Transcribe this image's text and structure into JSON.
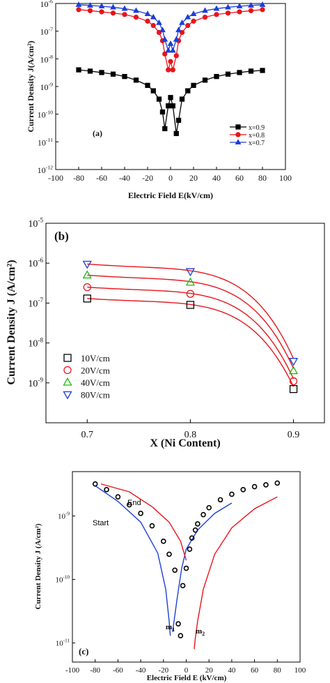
{
  "chart_data": [
    {
      "panel": "(a)",
      "type": "line",
      "xlabel": "Electric Field E(kV/cm)",
      "ylabel": "Current Density J(A/cm²)",
      "xlim": [
        -100,
        100
      ],
      "ylim": [
        1e-12,
        1e-06
      ],
      "yscale": "log",
      "xticks": [
        "-100",
        "-80",
        "-60",
        "-40",
        "-20",
        "0",
        "20",
        "40",
        "60",
        "80",
        "100"
      ],
      "yticks": [
        {
          "b": "10",
          "e": "-12"
        },
        {
          "b": "10",
          "e": "-11"
        },
        {
          "b": "10",
          "e": "-10"
        },
        {
          "b": "10",
          "e": "-9"
        },
        {
          "b": "10",
          "e": "-8"
        },
        {
          "b": "10",
          "e": "-7"
        },
        {
          "b": "10",
          "e": "-6"
        }
      ],
      "legend_position": "bottom-right",
      "series": [
        {
          "name": "x=0.9",
          "color": "#000000",
          "marker": "square",
          "x": [
            -80,
            -70,
            -60,
            -50,
            -40,
            -30,
            -20,
            -15,
            -10,
            -7,
            -5,
            -2,
            0,
            2,
            5,
            7,
            10,
            15,
            20,
            30,
            40,
            50,
            60,
            70,
            80
          ],
          "y": [
            4e-09,
            3.6e-09,
            3.2e-09,
            2.8e-09,
            2.3e-09,
            1.7e-09,
            1.1e-09,
            7e-10,
            3.5e-10,
            1.2e-10,
            3e-11,
            2e-10,
            4e-10,
            2e-10,
            2e-11,
            6e-11,
            3.5e-10,
            7e-10,
            1.1e-09,
            1.7e-09,
            2.3e-09,
            2.8e-09,
            3.2e-09,
            3.6e-09,
            3.8e-09
          ]
        },
        {
          "name": "x=0.8",
          "color": "#e8151b",
          "marker": "circle",
          "x": [
            -80,
            -70,
            -60,
            -50,
            -40,
            -30,
            -20,
            -15,
            -10,
            -7,
            -5,
            -2,
            0,
            2,
            5,
            7,
            10,
            15,
            20,
            30,
            40,
            50,
            60,
            70,
            80
          ],
          "y": [
            6e-07,
            5.5e-07,
            5e-07,
            4.5e-07,
            4e-07,
            3.2e-07,
            2.3e-07,
            1.6e-07,
            9e-08,
            4.5e-08,
            1.5e-08,
            4e-09,
            8e-09,
            4e-09,
            1.3e-08,
            4.5e-08,
            9e-08,
            1.6e-07,
            2.3e-07,
            3.2e-07,
            4e-07,
            4.5e-07,
            5e-07,
            5.5e-07,
            6e-07
          ]
        },
        {
          "name": "x=0.7",
          "color": "#1c3fd6",
          "marker": "triangle",
          "x": [
            -80,
            -70,
            -60,
            -50,
            -40,
            -30,
            -20,
            -15,
            -10,
            -7,
            -5,
            -2,
            0,
            2,
            5,
            7,
            10,
            15,
            20,
            30,
            40,
            50,
            60,
            70,
            80
          ],
          "y": [
            9e-07,
            8.5e-07,
            8e-07,
            7.3e-07,
            6.5e-07,
            5.5e-07,
            4.2e-07,
            3.2e-07,
            2e-07,
            1.1e-07,
            5e-08,
            2e-08,
            3.5e-08,
            2e-08,
            5e-08,
            1.1e-07,
            2e-07,
            3.2e-07,
            4.2e-07,
            5.5e-07,
            6.5e-07,
            7.3e-07,
            8e-07,
            8.5e-07,
            9e-07
          ]
        }
      ]
    },
    {
      "panel": "(b)",
      "type": "scatter",
      "xlabel": "X (Ni Content)",
      "ylabel": "Current Density J (A/cm²)",
      "xlim": [
        0.66,
        0.93
      ],
      "ylim": [
        1e-10,
        1e-05
      ],
      "yscale": "log",
      "xticks": [
        "0.7",
        "0.8",
        "0.9"
      ],
      "yticks": [
        {
          "b": "10",
          "e": "-9"
        },
        {
          "b": "10",
          "e": "-8"
        },
        {
          "b": "10",
          "e": "-7"
        },
        {
          "b": "10",
          "e": "-6"
        },
        {
          "b": "10",
          "e": "-5"
        }
      ],
      "legend_position": "bottom-left",
      "fit_line_color": "#e8151b",
      "series": [
        {
          "name": "10V/cm",
          "color": "#000000",
          "marker": "square",
          "x": [
            0.7,
            0.8,
            0.9
          ],
          "y": [
            1.3e-07,
            9e-08,
            7e-10
          ]
        },
        {
          "name": "20V/cm",
          "color": "#e8151b",
          "marker": "circle",
          "x": [
            0.7,
            0.8,
            0.9
          ],
          "y": [
            2.5e-07,
            1.7e-07,
            1.1e-09
          ]
        },
        {
          "name": "40V/cm",
          "color": "#22b814",
          "marker": "triangle",
          "x": [
            0.7,
            0.8,
            0.9
          ],
          "y": [
            5e-07,
            3.3e-07,
            2e-09
          ]
        },
        {
          "name": "80V/cm",
          "color": "#1c3fd6",
          "marker": "triangle-down",
          "x": [
            0.7,
            0.8,
            0.9
          ],
          "y": [
            9.5e-07,
            6.2e-07,
            3.5e-09
          ]
        }
      ]
    },
    {
      "panel": "(c)",
      "type": "scatter",
      "xlabel": "Electric Field E (kV/cm)",
      "ylabel": "Current Density J (A/cm²)",
      "xlim": [
        -100,
        100
      ],
      "ylim": [
        5e-12,
        5e-09
      ],
      "yscale": "log",
      "xticks": [
        "-100",
        "-80",
        "-60",
        "-40",
        "-20",
        "0",
        "20",
        "40",
        "60",
        "80",
        "100"
      ],
      "yticks": [
        {
          "b": "10",
          "e": "-11"
        },
        {
          "b": "10",
          "e": "-10"
        },
        {
          "b": "10",
          "e": "-9"
        }
      ],
      "annotations": {
        "start": "Start",
        "end": "End",
        "m1": "m",
        "m1_sub": "1",
        "m2": "m",
        "m2_sub": "2"
      },
      "start_color": "#1c3fd6",
      "end_color": "#e8151b",
      "series": [
        {
          "name": "",
          "color": "#000000",
          "marker": "circle",
          "x": [
            -80,
            -70,
            -60,
            -50,
            -40,
            -30,
            -20,
            -15,
            -10,
            -7,
            -5,
            -3,
            0,
            3,
            5,
            8,
            10,
            15,
            20,
            30,
            40,
            50,
            60,
            70,
            80
          ],
          "y": [
            3.2e-09,
            2.6e-09,
            2e-09,
            1.5e-09,
            1.1e-09,
            7e-10,
            4e-10,
            2.5e-10,
            1.4e-10,
            2e-11,
            1.3e-11,
            8e-11,
            1.5e-10,
            3e-10,
            4.5e-10,
            6e-10,
            7.5e-10,
            1.05e-09,
            1.35e-09,
            1.8e-09,
            2.2e-09,
            2.6e-09,
            2.9e-09,
            3.1e-09,
            3.3e-09
          ]
        }
      ]
    }
  ]
}
